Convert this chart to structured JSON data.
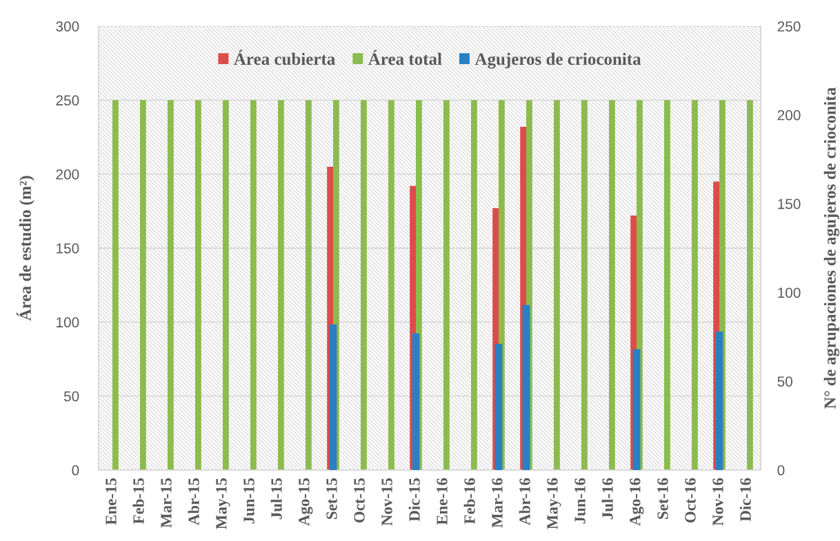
{
  "chart_data": {
    "type": "bar",
    "categories": [
      "Ene-15",
      "Feb-15",
      "Mar-15",
      "Abr-15",
      "May-15",
      "Jun-15",
      "Jul-15",
      "Ago-15",
      "Set-15",
      "Oct-15",
      "Nov-15",
      "Dic-15",
      "Ene-16",
      "Feb-16",
      "Mar-16",
      "Abr-16",
      "May-16",
      "Jun-16",
      "Jul-16",
      "Ago-16",
      "Set-16",
      "Oct-16",
      "Nov-16",
      "Dic-16"
    ],
    "ylabel": "Área de estudio (m²)",
    "y2label": "N° de agrupaciones de agujeros de crioconita",
    "ylim": [
      0,
      300
    ],
    "yticks": [
      0,
      50,
      100,
      150,
      200,
      250,
      300
    ],
    "y2lim": [
      0,
      250
    ],
    "y2ticks": [
      0,
      50,
      100,
      150,
      200,
      250
    ],
    "grid": "y",
    "legend": "top",
    "series": [
      {
        "name": "Área cubierta",
        "color": "#de4b48",
        "values": [
          null,
          null,
          null,
          null,
          null,
          null,
          null,
          null,
          205,
          null,
          null,
          192,
          null,
          null,
          177,
          232,
          null,
          null,
          null,
          172,
          null,
          null,
          195,
          null
        ]
      },
      {
        "name": "Área total",
        "color": "#8cbb4f",
        "values": [
          250,
          250,
          250,
          250,
          250,
          250,
          250,
          250,
          250,
          250,
          250,
          250,
          250,
          250,
          250,
          250,
          250,
          250,
          250,
          250,
          250,
          250,
          250,
          250
        ]
      },
      {
        "name": "Agujeros de crioconita",
        "color": "#2a80c2",
        "axis": "y2",
        "values": [
          null,
          null,
          null,
          null,
          null,
          null,
          null,
          null,
          82,
          null,
          null,
          77,
          null,
          null,
          71,
          93,
          null,
          null,
          null,
          68,
          null,
          null,
          78,
          null
        ]
      }
    ]
  }
}
